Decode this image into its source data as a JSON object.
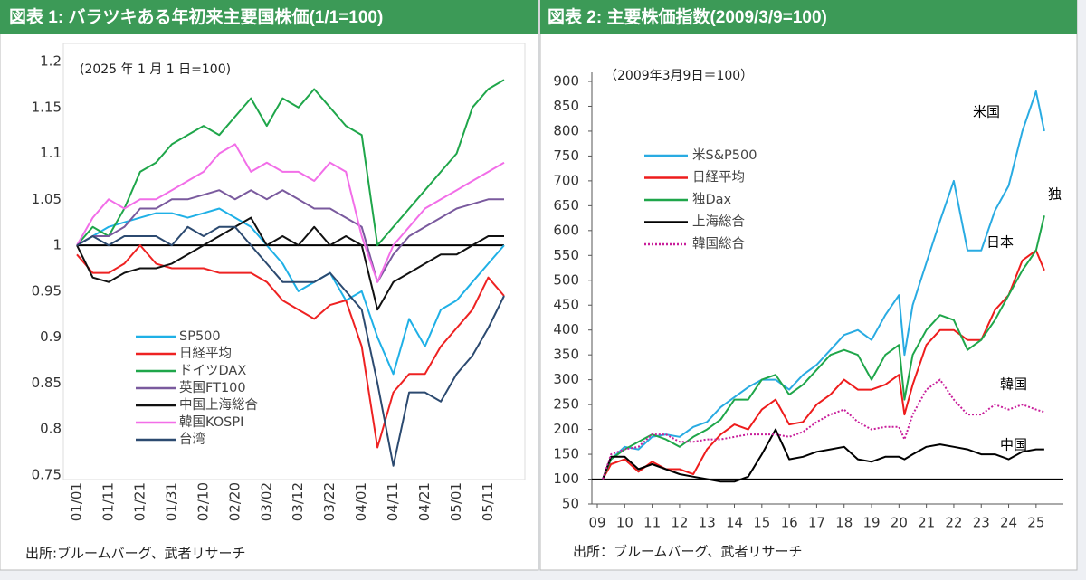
{
  "chart_data": [
    {
      "type": "line",
      "title": "図表 1: バラツキある年初来主要国株価(1/1=100)",
      "note": "(2025 年 1 月 1 日=100)",
      "source": "出所:ブルームバーグ、武者リサーチ",
      "categories": [
        "01/01",
        null,
        "01/11",
        null,
        "01/21",
        null,
        "01/31",
        null,
        "02/10",
        null,
        "02/20",
        null,
        "03/02",
        null,
        "03/12",
        null,
        "03/22",
        null,
        "04/01",
        null,
        "04/11",
        null,
        "04/21",
        null,
        "05/01",
        null,
        "05/11",
        null
      ],
      "ylim": [
        0.75,
        1.2
      ],
      "yticks": [
        0.75,
        0.8,
        0.85,
        0.9,
        0.95,
        1,
        1.05,
        1.1,
        1.15,
        1.2
      ],
      "reference_line": 1,
      "grid": false,
      "legend": "lower-left",
      "series": [
        {
          "name": "SP500",
          "color": "#1fb0e6",
          "values": [
            1.0,
            1.01,
            1.02,
            1.025,
            1.03,
            1.035,
            1.035,
            1.03,
            1.035,
            1.04,
            1.03,
            1.02,
            1.0,
            0.98,
            0.95,
            0.96,
            0.97,
            0.94,
            0.95,
            0.9,
            0.86,
            0.92,
            0.89,
            0.93,
            0.94,
            0.96,
            0.98,
            1.0
          ]
        },
        {
          "name": "日経平均",
          "color": "#ee2222",
          "values": [
            0.99,
            0.97,
            0.97,
            0.98,
            1.0,
            0.98,
            0.975,
            0.975,
            0.975,
            0.97,
            0.97,
            0.97,
            0.96,
            0.94,
            0.93,
            0.92,
            0.935,
            0.94,
            0.89,
            0.78,
            0.84,
            0.86,
            0.86,
            0.89,
            0.91,
            0.93,
            0.965,
            0.945
          ]
        },
        {
          "name": "ドイツDAX",
          "color": "#1fa64a",
          "values": [
            1.0,
            1.02,
            1.01,
            1.04,
            1.08,
            1.09,
            1.11,
            1.12,
            1.13,
            1.12,
            1.14,
            1.16,
            1.13,
            1.16,
            1.15,
            1.17,
            1.15,
            1.13,
            1.12,
            1.0,
            1.02,
            1.04,
            1.06,
            1.08,
            1.1,
            1.15,
            1.17,
            1.18
          ]
        },
        {
          "name": "英国FT100",
          "color": "#7a5a9e",
          "values": [
            1.0,
            1.01,
            1.01,
            1.02,
            1.04,
            1.04,
            1.05,
            1.05,
            1.055,
            1.06,
            1.05,
            1.06,
            1.05,
            1.06,
            1.05,
            1.04,
            1.04,
            1.03,
            1.02,
            0.96,
            0.99,
            1.01,
            1.02,
            1.03,
            1.04,
            1.045,
            1.05,
            1.05
          ]
        },
        {
          "name": "中国上海総合",
          "color": "#111111",
          "values": [
            1.0,
            0.965,
            0.96,
            0.97,
            0.975,
            0.975,
            0.98,
            0.99,
            1.0,
            1.01,
            1.02,
            1.03,
            1.0,
            1.01,
            1.0,
            1.02,
            1.0,
            1.01,
            1.0,
            0.93,
            0.96,
            0.97,
            0.98,
            0.99,
            0.99,
            1.0,
            1.01,
            1.01
          ]
        },
        {
          "name": "韓国KOSPI",
          "color": "#f26ee8",
          "values": [
            1.0,
            1.03,
            1.05,
            1.04,
            1.05,
            1.05,
            1.06,
            1.07,
            1.08,
            1.1,
            1.11,
            1.08,
            1.09,
            1.08,
            1.08,
            1.07,
            1.09,
            1.08,
            1.01,
            0.96,
            1.0,
            1.02,
            1.04,
            1.05,
            1.06,
            1.07,
            1.08,
            1.09
          ]
        },
        {
          "name": "台湾",
          "color": "#2c4a70",
          "values": [
            1.0,
            1.01,
            1.0,
            1.01,
            1.01,
            1.01,
            1.0,
            1.02,
            1.01,
            1.02,
            1.02,
            1.0,
            0.98,
            0.96,
            0.96,
            0.96,
            0.97,
            0.95,
            0.93,
            0.85,
            0.76,
            0.84,
            0.84,
            0.83,
            0.86,
            0.88,
            0.91,
            0.945
          ]
        }
      ]
    },
    {
      "type": "line",
      "title": "図表 2: 主要株価指数(2009/3/9=100)",
      "note": "（2009年3月9日＝100）",
      "source": "出所：ブルームバーグ、武者リサーチ",
      "x": [
        2009.2,
        2009.5,
        2010,
        2010.5,
        2011,
        2011.5,
        2012,
        2012.5,
        2013,
        2013.5,
        2014,
        2014.5,
        2015,
        2015.5,
        2016,
        2016.5,
        2017,
        2017.5,
        2018,
        2018.5,
        2019,
        2019.5,
        2020,
        2020.2,
        2020.5,
        2021,
        2021.5,
        2022,
        2022.5,
        2023,
        2023.5,
        2024,
        2024.5,
        2025,
        2025.3
      ],
      "xlim": [
        2009,
        2025.5
      ],
      "xticks": [
        {
          "value": 2009,
          "label": "09"
        },
        {
          "value": 2010,
          "label": "10"
        },
        {
          "value": 2011,
          "label": "11"
        },
        {
          "value": 2012,
          "label": "12"
        },
        {
          "value": 2013,
          "label": "13"
        },
        {
          "value": 2014,
          "label": "14"
        },
        {
          "value": 2015,
          "label": "15"
        },
        {
          "value": 2016,
          "label": "16"
        },
        {
          "value": 2017,
          "label": "17"
        },
        {
          "value": 2018,
          "label": "18"
        },
        {
          "value": 2019,
          "label": "19"
        },
        {
          "value": 2020,
          "label": "20"
        },
        {
          "value": 2021,
          "label": "21"
        },
        {
          "value": 2022,
          "label": "22"
        },
        {
          "value": 2023,
          "label": "23"
        },
        {
          "value": 2024,
          "label": "24"
        },
        {
          "value": 2025,
          "label": "25"
        }
      ],
      "ylim": [
        50,
        900
      ],
      "yticks": [
        50,
        100,
        150,
        200,
        250,
        300,
        350,
        400,
        450,
        500,
        550,
        600,
        650,
        700,
        750,
        800,
        850,
        900
      ],
      "reference_line": 100,
      "grid": false,
      "legend": "upper-left",
      "annotations": [
        "米国",
        "独",
        "日本",
        "韓国",
        "中国"
      ],
      "series": [
        {
          "name": "米S&P500",
          "color": "#29abe2",
          "values": [
            100,
            140,
            165,
            160,
            185,
            190,
            185,
            205,
            215,
            245,
            265,
            285,
            300,
            300,
            280,
            310,
            330,
            360,
            390,
            400,
            380,
            430,
            470,
            350,
            450,
            535,
            620,
            700,
            560,
            560,
            640,
            690,
            800,
            880,
            800
          ]
        },
        {
          "name": "日経平均",
          "color": "#ee1c1c",
          "values": [
            100,
            130,
            140,
            115,
            135,
            120,
            120,
            110,
            160,
            190,
            210,
            200,
            240,
            260,
            210,
            215,
            250,
            270,
            300,
            280,
            280,
            290,
            310,
            230,
            290,
            370,
            400,
            400,
            380,
            380,
            440,
            470,
            540,
            560,
            520
          ]
        },
        {
          "name": "独Dax",
          "color": "#1fa64a",
          "values": [
            100,
            140,
            160,
            175,
            190,
            180,
            165,
            185,
            200,
            220,
            260,
            260,
            300,
            310,
            270,
            290,
            320,
            350,
            360,
            350,
            300,
            350,
            370,
            260,
            350,
            400,
            430,
            420,
            360,
            380,
            420,
            470,
            520,
            560,
            630
          ]
        },
        {
          "name": "上海総合",
          "color": "#000000",
          "values": [
            100,
            145,
            145,
            120,
            130,
            120,
            110,
            105,
            100,
            95,
            95,
            105,
            150,
            200,
            140,
            145,
            155,
            160,
            165,
            140,
            135,
            145,
            145,
            140,
            150,
            165,
            170,
            165,
            160,
            150,
            150,
            140,
            155,
            160,
            160
          ]
        },
        {
          "name": "韓国総合",
          "color": "#c81e9a",
          "dash": "dotted",
          "values": [
            100,
            150,
            160,
            165,
            190,
            190,
            175,
            175,
            180,
            180,
            185,
            190,
            190,
            190,
            185,
            195,
            215,
            230,
            240,
            215,
            200,
            205,
            205,
            180,
            230,
            280,
            300,
            260,
            230,
            230,
            250,
            240,
            250,
            240,
            235
          ]
        }
      ]
    }
  ]
}
